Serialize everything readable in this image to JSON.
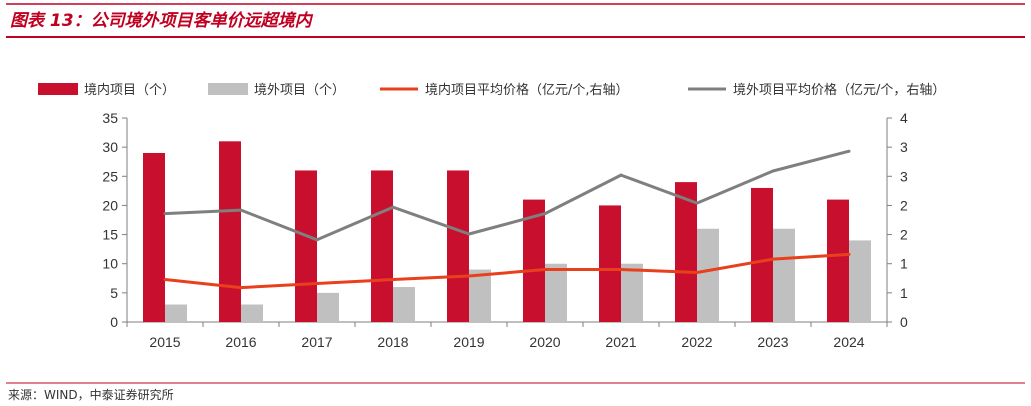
{
  "header": {
    "title": "图表 13：公司境外项目客单价远超境内"
  },
  "footer": {
    "source": "来源：WIND，中泰证券研究所"
  },
  "colors": {
    "accent": "#c00020",
    "domestic_bar": "#c8102e",
    "overseas_bar": "#c0c0c0",
    "domestic_line": "#e8401c",
    "overseas_line": "#7f7f7f"
  },
  "chart_data": {
    "type": "bar",
    "title": "图表 13：公司境外项目客单价远超境内",
    "categories": [
      "2015",
      "2016",
      "2017",
      "2018",
      "2019",
      "2020",
      "2021",
      "2022",
      "2023",
      "2024"
    ],
    "series": [
      {
        "name": "境内项目（个）",
        "type": "bar",
        "axis": "left",
        "color": "#c8102e",
        "values": [
          29,
          31,
          26,
          26,
          26,
          21,
          20,
          24,
          23,
          21
        ]
      },
      {
        "name": "境外项目（个）",
        "type": "bar",
        "axis": "left",
        "color": "#c0c0c0",
        "values": [
          3,
          3,
          5,
          6,
          9,
          10,
          10,
          16,
          16,
          14
        ]
      },
      {
        "name": "境内项目平均价格（亿元/个,右轴）",
        "type": "line",
        "axis": "right",
        "color": "#e8401c",
        "values": [
          0.73,
          0.59,
          0.66,
          0.73,
          0.79,
          0.9,
          0.9,
          0.85,
          1.08,
          1.16
        ]
      },
      {
        "name": "境外项目平均价格（亿元/个，右轴）",
        "type": "line",
        "axis": "right",
        "color": "#7f7f7f",
        "values": [
          1.86,
          1.92,
          1.41,
          1.97,
          1.51,
          1.86,
          2.52,
          2.04,
          2.59,
          2.93
        ]
      }
    ],
    "y_left": {
      "min": 0,
      "max": 35,
      "ticks": [
        "0",
        "5",
        "10",
        "15",
        "20",
        "25",
        "30",
        "35"
      ]
    },
    "y_right": {
      "min": 0,
      "max": 3.5,
      "ticks": [
        "0",
        "1",
        "1",
        "2",
        "2",
        "3",
        "3",
        "4"
      ]
    },
    "grid": false,
    "legend_position": "top"
  }
}
